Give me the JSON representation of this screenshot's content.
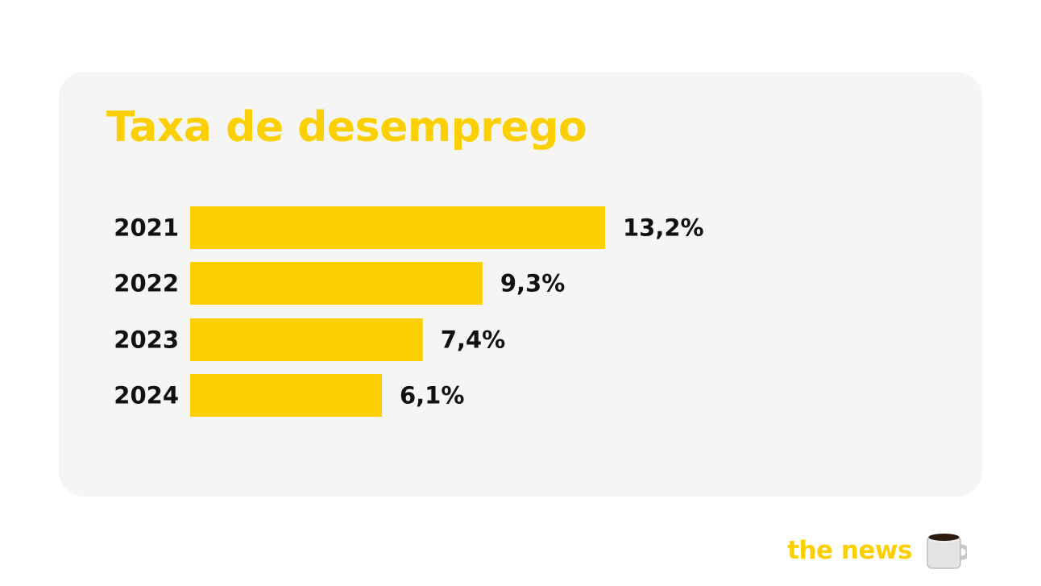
{
  "brand": {
    "name": "the news",
    "icon": "coffee-mug-icon"
  },
  "colors": {
    "accent": "#fcd000",
    "card_background": "#f5f5f5",
    "text": "#111111"
  },
  "chart_data": {
    "type": "bar",
    "orientation": "horizontal",
    "title": "Taxa de desemprego",
    "categories": [
      "2021",
      "2022",
      "2023",
      "2024"
    ],
    "values": [
      13.2,
      9.3,
      7.4,
      6.1
    ],
    "value_labels": [
      "13,2%",
      "9,3%",
      "7,4%",
      "6,1%"
    ],
    "xlabel": "",
    "ylabel": "",
    "grid": false,
    "legend": "none"
  }
}
